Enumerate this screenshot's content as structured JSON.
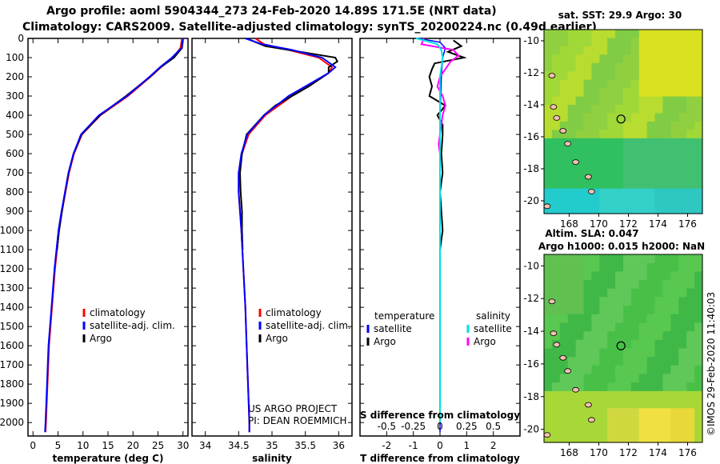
{
  "header": {
    "line1": "Argo profile: aoml 5904344_273 24-Feb-2020 14.89S 171.5E (NRT data)",
    "line2": "Climatology: CARS2009. Satellite-adjusted climatology: synTS_20200224.nc (0.49d earlier)"
  },
  "side_stamp": "©IMOS 29-Feb-2020 11:40:03",
  "colors": {
    "climatology": "#ff0000",
    "satellite": "#0000ff",
    "argo": "#000000",
    "sat_t": "#00e0e0",
    "argo_s": "#ff00ff"
  },
  "chart_data": [
    {
      "type": "line",
      "xlabel": "temperature (deg C)",
      "xlim": [
        -1,
        31
      ],
      "ylim": [
        2070,
        0
      ],
      "xticks": [
        "0",
        "5",
        "10",
        "15",
        "20",
        "25",
        "30"
      ],
      "yticks": [
        "0",
        "100",
        "200",
        "300",
        "400",
        "500",
        "600",
        "700",
        "800",
        "900",
        "1000",
        "1100",
        "1200",
        "1300",
        "1400",
        "1500",
        "1600",
        "1700",
        "1800",
        "1900",
        "2000"
      ],
      "legend": [
        "climatology",
        "satellite-adj. clim.",
        "Argo"
      ],
      "series": [
        {
          "name": "climatology",
          "depth": [
            0,
            50,
            100,
            150,
            200,
            300,
            400,
            500,
            600,
            700,
            800,
            900,
            1000,
            1200,
            1400,
            1600,
            1800,
            2000,
            2050
          ],
          "values": [
            29.8,
            29.5,
            28.0,
            25.6,
            23.5,
            19.0,
            13.5,
            9.8,
            8.2,
            7.2,
            6.5,
            5.8,
            5.2,
            4.4,
            3.8,
            3.2,
            2.9,
            2.6,
            2.5
          ]
        },
        {
          "name": "satellite-adj. clim.",
          "depth": [
            0,
            50,
            100,
            150,
            200,
            300,
            400,
            500,
            600,
            700,
            800,
            900,
            1000,
            1200,
            1400,
            1600,
            1800,
            2000,
            2050
          ],
          "values": [
            30.0,
            29.7,
            27.8,
            25.4,
            23.3,
            18.8,
            13.2,
            9.6,
            8.1,
            7.1,
            6.4,
            5.7,
            5.1,
            4.3,
            3.7,
            3.1,
            2.8,
            2.5,
            2.4
          ]
        },
        {
          "name": "Argo",
          "depth": [
            5,
            50,
            100,
            150,
            200,
            300,
            400,
            500,
            600,
            700,
            800,
            900,
            1000,
            1100
          ],
          "values": [
            30.0,
            29.8,
            28.2,
            25.5,
            23.4,
            18.6,
            13.4,
            9.7,
            8.1,
            7.1,
            6.4,
            5.8,
            5.2,
            4.8
          ]
        }
      ]
    },
    {
      "type": "line",
      "xlabel": "salinity",
      "xlim": [
        33.8,
        36.2
      ],
      "ylim": [
        2070,
        0
      ],
      "xticks": [
        "34",
        "34.5",
        "35",
        "35.5",
        "36"
      ],
      "legend": [
        "climatology",
        "satellite-adj. clim.",
        "Argo"
      ],
      "annotation": [
        "US ARGO PROJECT",
        "PI: DEAN ROEMMICH"
      ],
      "series": [
        {
          "name": "climatology",
          "depth": [
            0,
            30,
            60,
            100,
            150,
            180,
            250,
            300,
            400,
            500,
            600,
            700,
            800,
            900,
            1000,
            1200,
            1400,
            1600,
            1800,
            2000,
            2050
          ],
          "values": [
            34.75,
            34.88,
            35.25,
            35.7,
            35.9,
            35.85,
            35.55,
            35.3,
            34.9,
            34.65,
            34.55,
            34.5,
            34.5,
            34.52,
            34.54,
            34.57,
            34.6,
            34.62,
            34.64,
            34.66,
            34.66
          ]
        },
        {
          "name": "satellite-adj. clim.",
          "depth": [
            0,
            30,
            60,
            100,
            150,
            180,
            250,
            300,
            400,
            500,
            600,
            700,
            800,
            900,
            1000,
            1200,
            1400,
            1600,
            1800,
            2000,
            2050
          ],
          "values": [
            34.6,
            34.85,
            35.3,
            35.75,
            35.95,
            35.85,
            35.5,
            35.25,
            34.88,
            34.63,
            34.54,
            34.5,
            34.5,
            34.52,
            34.54,
            34.57,
            34.6,
            34.62,
            34.64,
            34.66,
            34.66
          ]
        },
        {
          "name": "Argo",
          "depth": [
            5,
            40,
            80,
            100,
            120,
            150,
            180,
            250,
            300,
            350,
            400,
            500,
            600,
            700,
            800,
            900,
            1000,
            1100
          ],
          "values": [
            34.65,
            34.9,
            35.6,
            35.95,
            35.98,
            35.85,
            35.85,
            35.55,
            35.3,
            35.05,
            34.88,
            34.62,
            34.55,
            34.52,
            34.53,
            34.55,
            34.55,
            34.56
          ]
        }
      ]
    },
    {
      "type": "line",
      "xlabel": "T difference from climatology",
      "x2label": "S difference from climatology",
      "xlim": [
        -3,
        3
      ],
      "ylim": [
        2070,
        0
      ],
      "xticks": [
        "-2",
        "-1",
        "0",
        "1",
        "2"
      ],
      "x2ticks": [
        "-0.5",
        "-0.25",
        "0",
        "0.25",
        "0.5"
      ],
      "legend_t": [
        "temperature",
        "satellite",
        "Argo"
      ],
      "legend_s": [
        "salinity",
        "satellite",
        "Argo"
      ],
      "series": [
        {
          "name": "satellite",
          "depth": [
            0,
            20,
            50,
            100,
            200,
            400,
            600,
            800,
            1000,
            1200,
            1400,
            1600,
            1800,
            2000,
            2050
          ],
          "values": [
            -0.8,
            0.0,
            0.2,
            0.1,
            0.05,
            0.0,
            0.0,
            0.0,
            0.0,
            0.0,
            0.0,
            0.0,
            0.0,
            0.0,
            0.0
          ]
        },
        {
          "name": "Argo",
          "depth": [
            10,
            40,
            70,
            100,
            130,
            160,
            200,
            250,
            300,
            350,
            400,
            450,
            500,
            600,
            700,
            800,
            900,
            1000,
            1100
          ],
          "values": [
            0.5,
            0.8,
            0.3,
            0.9,
            -0.2,
            -0.3,
            -0.4,
            -0.3,
            -0.4,
            0.2,
            -0.1,
            0.1,
            0.1,
            0.05,
            0.1,
            0.0,
            0.05,
            0.1,
            0.0
          ]
        },
        {
          "name": "satellite",
          "depth": [
            0,
            10,
            30,
            60,
            100,
            150,
            200,
            400,
            800,
            1200,
            1600,
            2000
          ],
          "values": [
            -0.9,
            -0.6,
            -0.1,
            0.05,
            0.1,
            0.05,
            0.0,
            0.0,
            0.0,
            0.0,
            0.0,
            0.0
          ]
        },
        {
          "name": "Argo",
          "depth": [
            0,
            30,
            60,
            90,
            120,
            160,
            200,
            250,
            300,
            350,
            400,
            450,
            500,
            550,
            600
          ],
          "values": [
            -0.6,
            -0.7,
            0.5,
            0.7,
            0.4,
            0.2,
            0.0,
            -0.1,
            0.1,
            0.2,
            0.1,
            0.05,
            0.0,
            -0.05,
            0.0
          ]
        }
      ]
    },
    {
      "type": "heatmap",
      "title": "sat. SST: 29.9 Argo: 30",
      "xticks": [
        "168",
        "170",
        "172",
        "174",
        "176"
      ],
      "yticks": [
        "-10",
        "-12",
        "-14",
        "-16",
        "-18",
        "-20"
      ],
      "marker": {
        "lon": 171.5,
        "lat": -14.89
      }
    },
    {
      "type": "heatmap",
      "title": "Altim. SLA: 0.047",
      "subtitle": "Argo h1000: 0.015 h2000: NaN",
      "xticks": [
        "168",
        "170",
        "172",
        "174",
        "176"
      ],
      "yticks": [
        "-10",
        "-12",
        "-14",
        "-16",
        "-18",
        "-20"
      ],
      "marker": {
        "lon": 171.5,
        "lat": -14.89
      }
    }
  ]
}
